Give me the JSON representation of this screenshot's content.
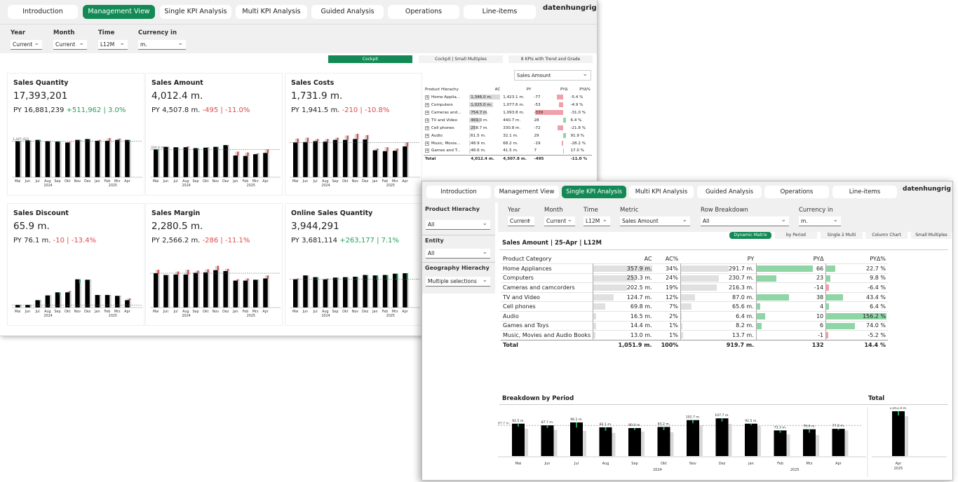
{
  "w1": {
    "tabs": [
      "Introduction",
      "Management View",
      "Single KPI Analysis",
      "Multi KPI Analysis",
      "Guided Analysis",
      "Operations",
      "Line-items"
    ],
    "brand": "datenhungrig",
    "filters": [
      {
        "label": "Year",
        "value": "Current"
      },
      {
        "label": "Month",
        "value": "Current"
      },
      {
        "label": "Time",
        "value": "L12M"
      },
      {
        "label": "Currency in",
        "value": "m."
      }
    ],
    "views": [
      "Cockpit",
      "Cockpit | Small Multiples",
      "8 KPIs with Trend and Grade"
    ],
    "metric_select": "Sales Amount",
    "kpis": [
      {
        "title": "Sales Quantity",
        "value": "17,393,201",
        "py": "PY 16,881,239",
        "delta": "+511,962 | 3.0%",
        "positive": true,
        "ref": "1,447,423"
      },
      {
        "title": "Sales Amount",
        "value": "4,012.4 m.",
        "py": "PY 4,507.8 m.",
        "delta": "-495 | -11.0%",
        "positive": false,
        "ref": "334.4 m."
      },
      {
        "title": "Sales Costs",
        "value": "1,731.9 m.",
        "py": "PY 1,941.5 m.",
        "delta": "-210 | -10.8%",
        "positive": false,
        "ref": ""
      },
      {
        "title": "Sales Discount",
        "value": "65.9 m.",
        "py": "PY 76.1 m.",
        "delta": "-10 | -13.4%",
        "positive": false,
        "ref": ""
      },
      {
        "title": "Sales Margin",
        "value": "2,280.5 m.",
        "py": "PY 2,566.2 m.",
        "delta": "-286 | -11.1%",
        "positive": false,
        "ref": ""
      },
      {
        "title": "Online Sales Quantity",
        "value": "3,944,291",
        "py": "PY 3,681,114",
        "delta": "+263,177 | 7.1%",
        "positive": true,
        "ref": ""
      }
    ],
    "months": [
      "Mai",
      "Jun",
      "Jul",
      "Aug",
      "Sep",
      "Okt",
      "Nov",
      "Dez",
      "Jan",
      "Feb",
      "Mrz",
      "Apr"
    ],
    "years": [
      "2024",
      "2025"
    ],
    "mini_series": [
      {
        "ac": [
          83,
          85,
          86,
          83,
          82,
          80,
          86,
          88,
          84,
          84,
          86,
          86
        ],
        "py": [
          80,
          84,
          82,
          81,
          79,
          81,
          86,
          86,
          86,
          90,
          89,
          82
        ]
      },
      {
        "ac": [
          64,
          70,
          69,
          69,
          67,
          68,
          70,
          74,
          50,
          49,
          53,
          56
        ],
        "py": [
          60,
          69,
          67,
          71,
          64,
          69,
          66,
          71,
          59,
          57,
          55,
          64
        ]
      },
      {
        "ac": [
          80,
          81,
          83,
          82,
          86,
          86,
          88,
          87,
          62,
          60,
          61,
          71
        ],
        "py": [
          89,
          91,
          88,
          88,
          91,
          96,
          100,
          97,
          66,
          69,
          66,
          80
        ]
      },
      {
        "ac": [
          6,
          6,
          17,
          28,
          35,
          35,
          65,
          64,
          29,
          29,
          27,
          17
        ],
        "py": [
          6,
          6,
          17,
          28,
          29,
          38,
          56,
          64,
          29,
          29,
          27,
          21
        ]
      },
      {
        "ac": [
          79,
          75,
          76,
          76,
          80,
          81,
          86,
          84,
          62,
          62,
          64,
          67
        ],
        "py": [
          87,
          73,
          83,
          87,
          85,
          88,
          96,
          89,
          65,
          67,
          64,
          74
        ]
      },
      {
        "ac": [
          65,
          74,
          70,
          65,
          69,
          70,
          71,
          75,
          74,
          75,
          78,
          79
        ],
        "py": [
          67,
          72,
          63,
          67,
          69,
          67,
          64,
          71,
          64,
          64,
          63,
          64
        ]
      }
    ],
    "table": {
      "headers": [
        "Product Hierachy",
        "AC",
        "PY",
        "PYΔ",
        "PYΔ%"
      ],
      "rows": [
        {
          "name": "Home Applia...",
          "ac": "1,346.0 m.",
          "py": "1,423.1 m.",
          "d": "-77",
          "p": "-5.4 %",
          "acv": 1346,
          "dv": -77
        },
        {
          "name": "Computers",
          "ac": "1,025.0 m.",
          "py": "1,077.6 m.",
          "d": "-53",
          "p": "-4.9 %",
          "acv": 1025,
          "dv": -53
        },
        {
          "name": "Cameras and...",
          "ac": "754.7 m.",
          "py": "1,093.8 m.",
          "d": "-339",
          "p": "-31.0 %",
          "acv": 754.7,
          "dv": -339
        },
        {
          "name": "TV and Video",
          "ac": "469.0 m.",
          "py": "440.7 m.",
          "d": "28",
          "p": "6.4 %",
          "acv": 469,
          "dv": 28
        },
        {
          "name": "Cell phones",
          "ac": "258.7 m.",
          "py": "330.8 m.",
          "d": "-72",
          "p": "-21.8 %",
          "acv": 258.7,
          "dv": -72
        },
        {
          "name": "Audio",
          "ac": "61.5 m.",
          "py": "32.1 m.",
          "d": "29",
          "p": "91.9 %",
          "acv": 61.5,
          "dv": 29
        },
        {
          "name": "Music, Movie...",
          "ac": "48.9 m.",
          "py": "68.2 m.",
          "d": "-19",
          "p": "-28.2 %",
          "acv": 48.9,
          "dv": -19
        },
        {
          "name": "Games and T...",
          "ac": "48.6 m.",
          "py": "41.5 m.",
          "d": "7",
          "p": "17.0 %",
          "acv": 48.6,
          "dv": 7
        }
      ],
      "total": {
        "name": "Total",
        "ac": "4,012.4 m.",
        "py": "4,507.8 m.",
        "d": "-495",
        "p": "-11.0 %"
      }
    }
  },
  "w2": {
    "tabs": [
      "Introduction",
      "Management View",
      "Single KPI Analysis",
      "Multi KPI Analysis",
      "Guided Analysis",
      "Operations",
      "Line-items"
    ],
    "brand": "datenhungrig",
    "sidebar": [
      {
        "label": "Product Hierachy",
        "value": "All"
      },
      {
        "label": "Entity",
        "value": "All"
      },
      {
        "label": "Geography Hierachy",
        "value": "Multiple selections"
      }
    ],
    "filters": [
      {
        "label": "Year",
        "value": "Current"
      },
      {
        "label": "Month",
        "value": "Current"
      },
      {
        "label": "Time",
        "value": "L12M"
      },
      {
        "label": "Metric",
        "value": "Sales Amount"
      },
      {
        "label": "Row Breakdown",
        "value": "All"
      },
      {
        "label": "Currency in",
        "value": "m."
      }
    ],
    "views": [
      "Dynamic Matrix",
      "by Period",
      "Single 2 Multi",
      "Column Chart",
      "Small Multiples"
    ],
    "subtitle": "Sales Amount | 25-Apr | L12M",
    "table": {
      "headers": [
        "Product Category",
        "AC",
        "AC%",
        "PY",
        "PYΔ",
        "PYΔ%"
      ],
      "rows": [
        {
          "name": "Home Appliances",
          "ac": "357.9 m.",
          "acp": "34%",
          "py": "291.7 m.",
          "d": "66",
          "p": "22.7 %",
          "acv": 357.9,
          "pyv": 291.7,
          "dv": 66,
          "pv": 22.7
        },
        {
          "name": "Computers",
          "ac": "253.3 m.",
          "acp": "24%",
          "py": "230.7 m.",
          "d": "23",
          "p": "9.8 %",
          "acv": 253.3,
          "pyv": 230.7,
          "dv": 23,
          "pv": 9.8
        },
        {
          "name": "Cameras and camcorders",
          "ac": "202.5 m.",
          "acp": "19%",
          "py": "216.3 m.",
          "d": "-14",
          "p": "-6.4 %",
          "acv": 202.5,
          "pyv": 216.3,
          "dv": -14,
          "pv": -6.4
        },
        {
          "name": "TV and Video",
          "ac": "124.7 m.",
          "acp": "12%",
          "py": "87.0 m.",
          "d": "38",
          "p": "43.4 %",
          "acv": 124.7,
          "pyv": 87,
          "dv": 38,
          "pv": 43.4
        },
        {
          "name": "Cell phones",
          "ac": "69.8 m.",
          "acp": "7%",
          "py": "65.6 m.",
          "d": "4",
          "p": "6.4 %",
          "acv": 69.8,
          "pyv": 65.6,
          "dv": 4,
          "pv": 6.4
        },
        {
          "name": "Audio",
          "ac": "16.5 m.",
          "acp": "2%",
          "py": "6.4 m.",
          "d": "10",
          "p": "156.2 %",
          "acv": 16.5,
          "pyv": 6.4,
          "dv": 10,
          "pv": 156.2
        },
        {
          "name": "Games and Toys",
          "ac": "14.4 m.",
          "acp": "1%",
          "py": "8.2 m.",
          "d": "6",
          "p": "74.0 %",
          "acv": 14.4,
          "pyv": 8.2,
          "dv": 6,
          "pv": 74
        },
        {
          "name": "Music, Movies and Audio Books",
          "ac": "13.0 m.",
          "acp": "1%",
          "py": "13.7 m.",
          "d": "-1",
          "p": "-5.2 %",
          "acv": 13,
          "pyv": 13.7,
          "dv": -1,
          "pv": -5.2
        }
      ],
      "total": {
        "name": "Total",
        "ac": "1,051.9 m.",
        "acp": "100%",
        "py": "919.7 m.",
        "d": "132",
        "p": "14.4 %"
      }
    },
    "breakdown_title": "Breakdown by Period",
    "total_title": "Total",
    "period": {
      "months": [
        "Mai",
        "Jun",
        "Jul",
        "Aug",
        "Sep",
        "Okt",
        "Nov",
        "Dez",
        "Jan",
        "Feb",
        "Mrz",
        "Apr"
      ],
      "years": [
        "2024",
        "2025"
      ],
      "labels": [
        "92.5 m.",
        "87.7 m.",
        "96.1 m.",
        "82.1 m.",
        "80.0 m.",
        "83.2 m.",
        "102.7 m.",
        "107.7 m.",
        "92.5 m.",
        "73.3 m.",
        "76.6 m.",
        "77.8 m."
      ],
      "ac": [
        92.5,
        87.7,
        96.1,
        82.1,
        80.0,
        83.2,
        102.7,
        107.7,
        92.5,
        73.3,
        76.6,
        77.8
      ],
      "py": [
        78,
        75,
        72,
        66,
        70,
        68,
        88,
        92,
        86,
        62,
        60,
        73
      ],
      "ref_label": "87.7 m.",
      "total_label": "1,051.9 m.",
      "total_month": "Apr",
      "total_year": "2025"
    }
  },
  "colors": {
    "accent": "#138a55",
    "positive": "#23a05a",
    "negative": "#e04848",
    "pos_bar": "#8fd5a6",
    "neg_bar": "#f0a0a8",
    "py_bar": "#d9d9d9",
    "ac_bar": "#000000"
  }
}
